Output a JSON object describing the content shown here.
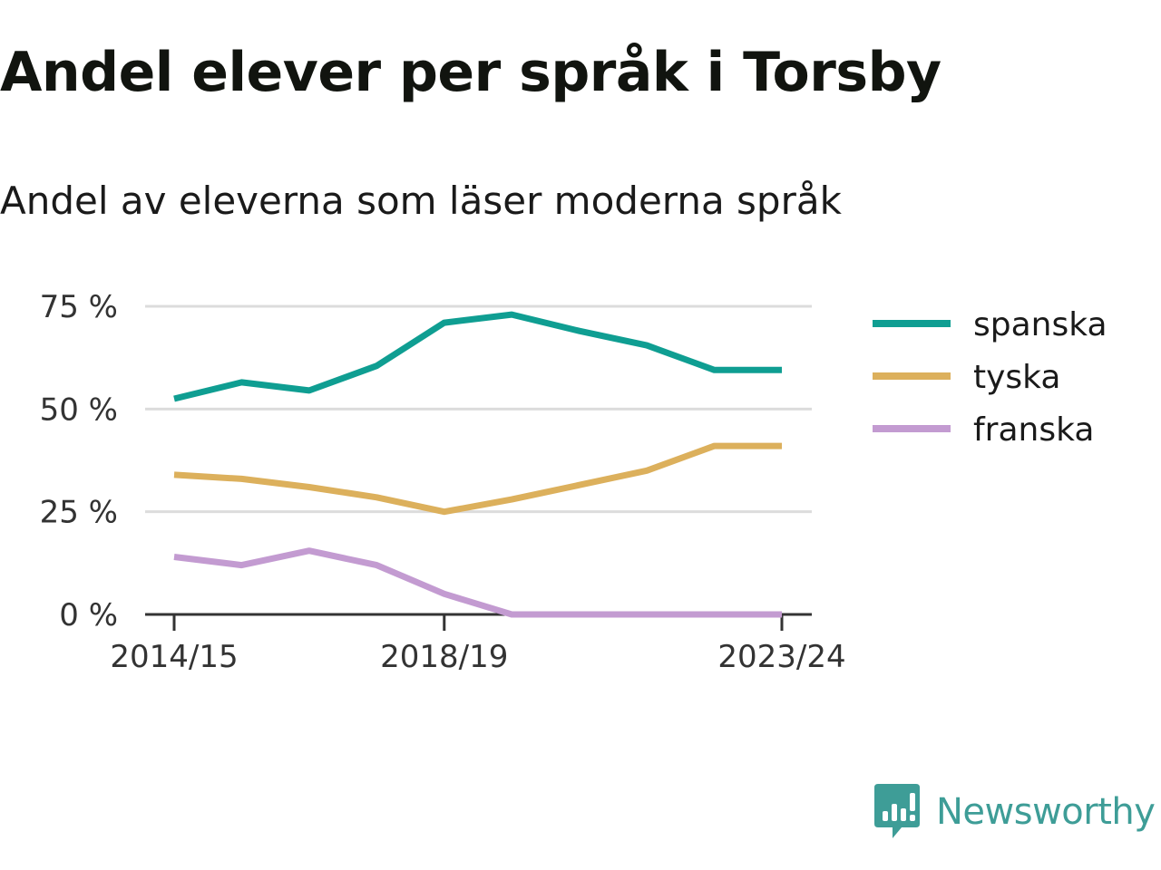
{
  "title": "Andel elever per språk i Torsby",
  "subtitle": "Andel av eleverna som läser moderna språk",
  "brand": {
    "name": "Newsworthy",
    "icon": "newsworthy-logo-icon",
    "color": "#3e9d97"
  },
  "chart_data": {
    "type": "line",
    "x": [
      "2014/15",
      "2015/16",
      "2016/17",
      "2017/18",
      "2018/19",
      "2019/20",
      "2020/21",
      "2021/22",
      "2022/23",
      "2023/24"
    ],
    "x_tick_labels": [
      "2014/15",
      "2018/19",
      "2023/24"
    ],
    "y_ticks": [
      0,
      25,
      50,
      75
    ],
    "y_tick_labels": [
      "0 %",
      "25 %",
      "50 %",
      "75 %"
    ],
    "ylim": [
      0,
      75
    ],
    "grid": true,
    "legend_position": "right",
    "series": [
      {
        "name": "spanska",
        "color": "#0f9e92",
        "values": [
          52.5,
          56.5,
          54.5,
          60.5,
          71,
          73,
          69,
          65.5,
          59.5,
          59.5
        ]
      },
      {
        "name": "tyska",
        "color": "#dcb05c",
        "values": [
          34,
          33,
          31,
          28.5,
          25,
          28,
          31.5,
          35,
          41,
          41
        ]
      },
      {
        "name": "franska",
        "color": "#c39bd1",
        "values": [
          14,
          12,
          15.5,
          12,
          5,
          0,
          0,
          0,
          0,
          0
        ]
      }
    ]
  }
}
